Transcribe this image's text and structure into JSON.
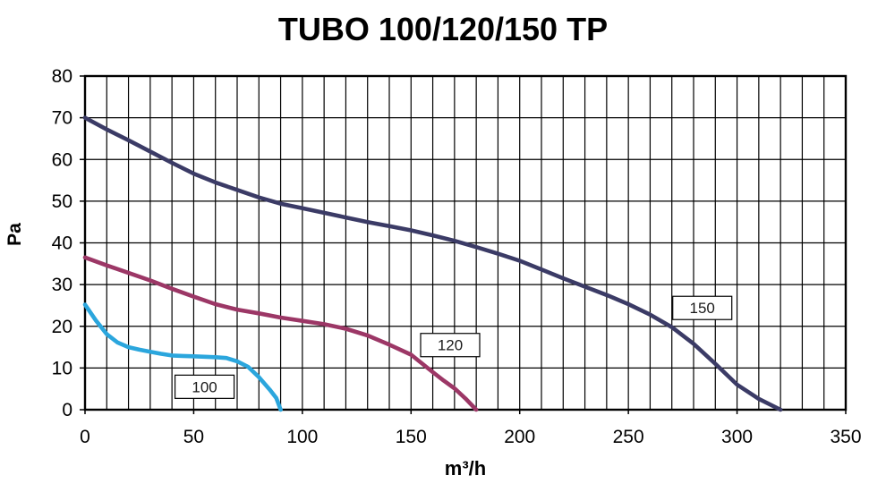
{
  "chart_data": {
    "type": "line",
    "title": "TUBO 100/120/150 TP",
    "xlabel": "m³/h",
    "ylabel": "Pa",
    "xlim": [
      0,
      350
    ],
    "ylim": [
      0,
      80
    ],
    "x_ticks": [
      0,
      50,
      100,
      150,
      200,
      250,
      300,
      350
    ],
    "y_ticks": [
      0,
      10,
      20,
      30,
      40,
      50,
      60,
      70,
      80
    ],
    "grid": true,
    "grid_step_x": 10,
    "grid_step_y": 10,
    "grid_color": "#000000",
    "tick_color": "#000000",
    "background_color": "#ffffff",
    "series": [
      {
        "name": "150",
        "color": "#3b3b66",
        "label_box": {
          "text": "150",
          "x": 284,
          "y": 24.4
        },
        "points": [
          [
            0,
            70
          ],
          [
            10,
            67.2
          ],
          [
            20,
            64.6
          ],
          [
            30,
            61.9
          ],
          [
            40,
            59.2
          ],
          [
            50,
            56.6
          ],
          [
            60,
            54.5
          ],
          [
            70,
            52.7
          ],
          [
            80,
            50.9
          ],
          [
            90,
            49.4
          ],
          [
            100,
            48.3
          ],
          [
            110,
            47.2
          ],
          [
            120,
            46.1
          ],
          [
            130,
            45.0
          ],
          [
            140,
            44.0
          ],
          [
            150,
            43.0
          ],
          [
            160,
            41.8
          ],
          [
            170,
            40.5
          ],
          [
            180,
            39.0
          ],
          [
            190,
            37.4
          ],
          [
            200,
            35.7
          ],
          [
            210,
            33.6
          ],
          [
            220,
            31.5
          ],
          [
            230,
            29.5
          ],
          [
            240,
            27.5
          ],
          [
            250,
            25.3
          ],
          [
            260,
            22.8
          ],
          [
            270,
            19.8
          ],
          [
            280,
            15.8
          ],
          [
            290,
            11.0
          ],
          [
            300,
            6.0
          ],
          [
            310,
            2.6
          ],
          [
            320,
            0
          ]
        ]
      },
      {
        "name": "120",
        "color": "#9c3766",
        "label_box": {
          "text": "120",
          "x": 168,
          "y": 15.5
        },
        "points": [
          [
            0,
            36.5
          ],
          [
            10,
            34.6
          ],
          [
            20,
            32.8
          ],
          [
            30,
            31.0
          ],
          [
            40,
            29.0
          ],
          [
            50,
            27.1
          ],
          [
            60,
            25.3
          ],
          [
            70,
            24.0
          ],
          [
            80,
            23.1
          ],
          [
            90,
            22.1
          ],
          [
            100,
            21.3
          ],
          [
            110,
            20.5
          ],
          [
            120,
            19.4
          ],
          [
            130,
            17.8
          ],
          [
            140,
            15.6
          ],
          [
            150,
            13.2
          ],
          [
            160,
            9.0
          ],
          [
            165,
            7.0
          ],
          [
            170,
            5.1
          ],
          [
            175,
            2.7
          ],
          [
            180,
            0
          ]
        ]
      },
      {
        "name": "100",
        "color": "#2ba6dd",
        "label_box": {
          "text": "100",
          "x": 55,
          "y": 5.5
        },
        "points": [
          [
            0,
            25.2
          ],
          [
            5,
            21.4
          ],
          [
            10,
            18.1
          ],
          [
            15,
            16.1
          ],
          [
            20,
            15.0
          ],
          [
            25,
            14.4
          ],
          [
            30,
            13.9
          ],
          [
            35,
            13.4
          ],
          [
            40,
            13.0
          ],
          [
            45,
            12.9
          ],
          [
            50,
            12.8
          ],
          [
            55,
            12.7
          ],
          [
            60,
            12.6
          ],
          [
            65,
            12.4
          ],
          [
            70,
            11.6
          ],
          [
            75,
            10.3
          ],
          [
            80,
            7.8
          ],
          [
            85,
            4.8
          ],
          [
            88,
            2.8
          ],
          [
            90,
            0
          ]
        ]
      }
    ]
  }
}
